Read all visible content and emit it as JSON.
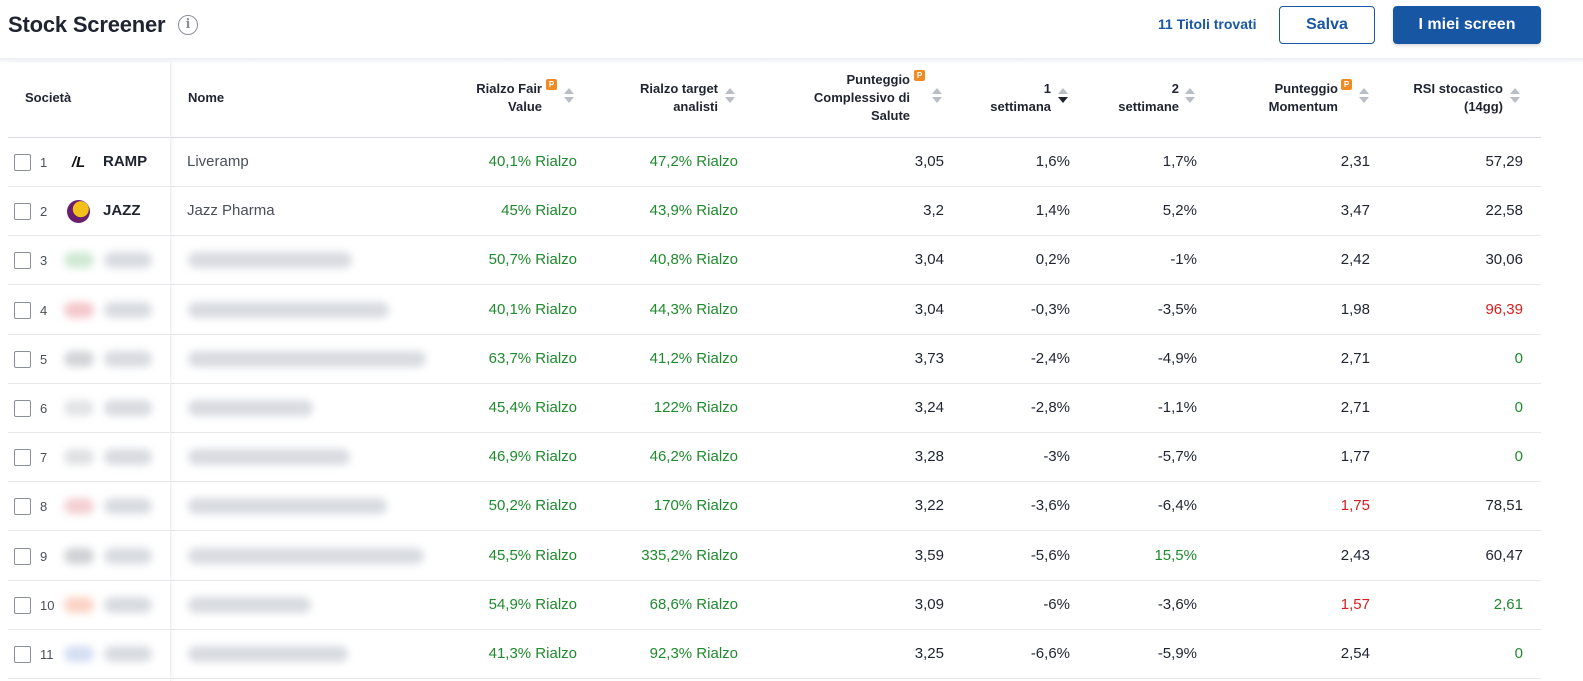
{
  "header": {
    "title": "Stock Screener",
    "found": "11 Titoli trovati",
    "save_label": "Salva",
    "screens_label": "I miei screen"
  },
  "columns": {
    "company": "Società",
    "name": "Nome",
    "fair_value_1": "Rialzo Fair",
    "fair_value_2": "Value",
    "analyst_1": "Rialzo target",
    "analyst_2": "analisti",
    "health_1": "Punteggio",
    "health_2": "Complessivo di",
    "health_3": "Salute",
    "week1_1": "1",
    "week1_2": "settimana",
    "week2_1": "2",
    "week2_2": "settimane",
    "momentum_1": "Punteggio",
    "momentum_2": "Momentum",
    "rsi_1": "RSI stocastico",
    "rsi_2": "(14gg)",
    "pro_badge": "P"
  },
  "rows": [
    {
      "idx": "1",
      "ticker": "RAMP",
      "name": "Liveramp",
      "logo": "liveramp-logo",
      "logo_text": "/L",
      "fv": "40,1% Rialzo",
      "an": "47,2% Rialzo",
      "health": "3,05",
      "w1": "1,6%",
      "w2": "1,7%",
      "mom": "2,31",
      "rsi": "57,29",
      "mom_color": "dark",
      "rsi_color": "dark",
      "w2_color": "dark"
    },
    {
      "idx": "2",
      "ticker": "JAZZ",
      "name": "Jazz Pharma",
      "logo": "jazz-logo",
      "logo_text": "",
      "fv": "45% Rialzo",
      "an": "43,9% Rialzo",
      "health": "3,2",
      "w1": "1,4%",
      "w2": "5,2%",
      "mom": "3,47",
      "rsi": "22,58",
      "mom_color": "dark",
      "rsi_color": "dark",
      "w2_color": "dark"
    },
    {
      "idx": "3",
      "ticker": "",
      "name": "",
      "fv": "50,7% Rialzo",
      "an": "40,8% Rialzo",
      "health": "3,04",
      "w1": "0,2%",
      "w2": "-1%",
      "mom": "2,42",
      "rsi": "30,06",
      "mom_color": "dark",
      "rsi_color": "dark",
      "w2_color": "dark"
    },
    {
      "idx": "4",
      "ticker": "",
      "name": "",
      "fv": "40,1% Rialzo",
      "an": "44,3% Rialzo",
      "health": "3,04",
      "w1": "-0,3%",
      "w2": "-3,5%",
      "mom": "1,98",
      "rsi": "96,39",
      "mom_color": "dark",
      "rsi_color": "red",
      "w2_color": "dark"
    },
    {
      "idx": "5",
      "ticker": "",
      "name": "",
      "fv": "63,7% Rialzo",
      "an": "41,2% Rialzo",
      "health": "3,73",
      "w1": "-2,4%",
      "w2": "-4,9%",
      "mom": "2,71",
      "rsi": "0",
      "mom_color": "dark",
      "rsi_color": "green",
      "w2_color": "dark"
    },
    {
      "idx": "6",
      "ticker": "",
      "name": "",
      "fv": "45,4% Rialzo",
      "an": "122% Rialzo",
      "health": "3,24",
      "w1": "-2,8%",
      "w2": "-1,1%",
      "mom": "2,71",
      "rsi": "0",
      "mom_color": "dark",
      "rsi_color": "green",
      "w2_color": "dark"
    },
    {
      "idx": "7",
      "ticker": "",
      "name": "",
      "fv": "46,9% Rialzo",
      "an": "46,2% Rialzo",
      "health": "3,28",
      "w1": "-3%",
      "w2": "-5,7%",
      "mom": "1,77",
      "rsi": "0",
      "mom_color": "dark",
      "rsi_color": "green",
      "w2_color": "dark"
    },
    {
      "idx": "8",
      "ticker": "",
      "name": "",
      "fv": "50,2% Rialzo",
      "an": "170% Rialzo",
      "health": "3,22",
      "w1": "-3,6%",
      "w2": "-6,4%",
      "mom": "1,75",
      "rsi": "78,51",
      "mom_color": "red",
      "rsi_color": "dark",
      "w2_color": "dark"
    },
    {
      "idx": "9",
      "ticker": "",
      "name": "",
      "fv": "45,5% Rialzo",
      "an": "335,2% Rialzo",
      "health": "3,59",
      "w1": "-5,6%",
      "w2": "15,5%",
      "mom": "2,43",
      "rsi": "60,47",
      "mom_color": "dark",
      "rsi_color": "dark",
      "w2_color": "green"
    },
    {
      "idx": "10",
      "ticker": "",
      "name": "",
      "fv": "54,9% Rialzo",
      "an": "68,6% Rialzo",
      "health": "3,09",
      "w1": "-6%",
      "w2": "-3,6%",
      "mom": "1,57",
      "rsi": "2,61",
      "mom_color": "red",
      "rsi_color": "green",
      "w2_color": "dark"
    },
    {
      "idx": "11",
      "ticker": "",
      "name": "",
      "fv": "41,3% Rialzo",
      "an": "92,3% Rialzo",
      "health": "3,25",
      "w1": "-6,6%",
      "w2": "-5,9%",
      "mom": "2,54",
      "rsi": "0",
      "mom_color": "dark",
      "rsi_color": "green",
      "w2_color": "dark"
    }
  ],
  "colors": {
    "accent": "#1756a3",
    "positive": "#1f8a2e",
    "negative": "#d32020",
    "pro": "#f08a22"
  }
}
